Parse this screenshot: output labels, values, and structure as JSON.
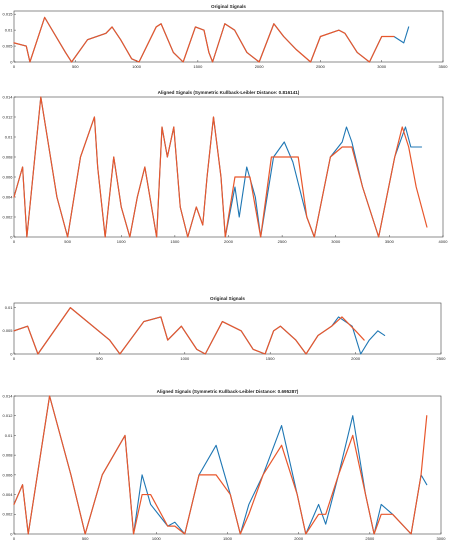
{
  "colors": {
    "blue": "#1f77b4",
    "orange": "#e8572c",
    "axis": "#444444",
    "grid": "#f0f0f0"
  },
  "chart_data": [
    {
      "type": "line",
      "title": "Original Signals",
      "xlim": [
        0,
        3500
      ],
      "ylim": [
        0,
        0.016
      ],
      "xticks": [
        0,
        500,
        1000,
        1500,
        2000,
        2500,
        3000,
        3500
      ],
      "yticks": [
        0,
        0.005,
        0.01,
        0.015
      ],
      "ytick_labels": [
        "0",
        "0.005",
        "0.01",
        "0.015"
      ],
      "series": [
        {
          "color": "blue",
          "x": [
            0,
            100,
            130,
            250,
            420,
            470,
            600,
            750,
            800,
            870,
            960,
            1020,
            1160,
            1200,
            1300,
            1380,
            1480,
            1550,
            1590,
            1620,
            1720,
            1800,
            1900,
            2000,
            2120,
            2200,
            2300,
            2420,
            2500,
            2650,
            2700,
            2800,
            2900,
            3000,
            3100,
            3180,
            3220
          ],
          "y": [
            0.006,
            0.005,
            0,
            0.014,
            0.003,
            0,
            0.007,
            0.009,
            0.011,
            0.007,
            0.001,
            0,
            0.011,
            0.012,
            0.003,
            0,
            0.011,
            0.01,
            0.003,
            0,
            0.012,
            0.01,
            0.003,
            0,
            0.012,
            0.008,
            0.004,
            0,
            0.008,
            0.01,
            0.009,
            0.003,
            0,
            0.008,
            0.008,
            0.006,
            0.011
          ]
        },
        {
          "color": "orange",
          "x": [
            0,
            100,
            130,
            250,
            420,
            470,
            600,
            750,
            800,
            870,
            960,
            1020,
            1160,
            1200,
            1300,
            1380,
            1480,
            1550,
            1590,
            1620,
            1720,
            1800,
            1900,
            2000,
            2120,
            2200,
            2300,
            2420,
            2500,
            2650,
            2700,
            2800,
            2900,
            3000,
            3100
          ],
          "y": [
            0.006,
            0.005,
            0,
            0.014,
            0.003,
            0,
            0.007,
            0.009,
            0.011,
            0.007,
            0.001,
            0,
            0.011,
            0.012,
            0.003,
            0,
            0.011,
            0.01,
            0.003,
            0,
            0.012,
            0.01,
            0.003,
            0,
            0.012,
            0.008,
            0.004,
            0,
            0.008,
            0.01,
            0.009,
            0.003,
            0,
            0.008,
            0.008
          ]
        }
      ]
    },
    {
      "type": "line",
      "title": "Aligned Signals (Symmetric Kullback-Leibler Distance: 0.816141)",
      "xlim": [
        0,
        4000
      ],
      "ylim": [
        0,
        0.014
      ],
      "xticks": [
        0,
        500,
        1000,
        1500,
        2000,
        2500,
        3000,
        3500,
        4000
      ],
      "yticks": [
        0,
        0.002,
        0.004,
        0.006,
        0.008,
        0.01,
        0.012,
        0.014
      ],
      "ytick_labels": [
        "0",
        "0.002",
        "0.004",
        "0.006",
        "0.008",
        "0.01",
        "0.012",
        "0.014"
      ],
      "series": [
        {
          "color": "blue",
          "x": [
            0,
            80,
            120,
            250,
            400,
            500,
            620,
            750,
            780,
            850,
            930,
            1000,
            1080,
            1150,
            1220,
            1330,
            1380,
            1430,
            1490,
            1550,
            1620,
            1700,
            1760,
            1800,
            1860,
            1930,
            1970,
            2060,
            2100,
            2170,
            2250,
            2300,
            2420,
            2520,
            2600,
            2730,
            2800,
            2950,
            3060,
            3100,
            3150,
            3250,
            3400,
            3550,
            3650,
            3700,
            3800
          ],
          "y": [
            0.004,
            0.007,
            0,
            0.014,
            0.004,
            0,
            0.008,
            0.012,
            0.007,
            0,
            0.008,
            0.003,
            0,
            0.004,
            0.007,
            0,
            0.011,
            0.008,
            0.011,
            0.003,
            0,
            0.003,
            0.0012,
            0.006,
            0.012,
            0.006,
            0,
            0.005,
            0.002,
            0.007,
            0.004,
            0,
            0.008,
            0.0095,
            0.0075,
            0.002,
            0,
            0.008,
            0.0095,
            0.011,
            0.0095,
            0.005,
            0,
            0.008,
            0.011,
            0.009,
            0.009
          ]
        },
        {
          "color": "orange",
          "x": [
            0,
            80,
            120,
            250,
            400,
            500,
            620,
            750,
            780,
            850,
            930,
            1000,
            1080,
            1150,
            1220,
            1330,
            1380,
            1430,
            1490,
            1550,
            1620,
            1700,
            1760,
            1800,
            1860,
            1930,
            1970,
            2060,
            2080,
            2200,
            2300,
            2400,
            2520,
            2650,
            2730,
            2800,
            2950,
            3060,
            3150,
            3250,
            3400,
            3550,
            3620,
            3680,
            3750,
            3850
          ],
          "y": [
            0.004,
            0.007,
            0,
            0.014,
            0.004,
            0,
            0.008,
            0.012,
            0.007,
            0,
            0.008,
            0.003,
            0,
            0.004,
            0.007,
            0,
            0.011,
            0.008,
            0.011,
            0.003,
            0,
            0.003,
            0.0012,
            0.006,
            0.012,
            0.006,
            0,
            0.006,
            0.006,
            0.006,
            0,
            0.008,
            0.008,
            0.008,
            0.002,
            0,
            0.008,
            0.009,
            0.009,
            0.005,
            0,
            0.008,
            0.011,
            0.009,
            0.005,
            0.001
          ]
        }
      ]
    },
    {
      "type": "line",
      "title": "Original Signals",
      "xlim": [
        0,
        2500
      ],
      "ylim": [
        0,
        0.011
      ],
      "xticks": [
        0,
        500,
        1000,
        1500,
        2000,
        2500
      ],
      "yticks": [
        0,
        0.005,
        0.01
      ],
      "ytick_labels": [
        "0",
        "0.005",
        "0.01"
      ],
      "series": [
        {
          "color": "blue",
          "x": [
            0,
            80,
            140,
            330,
            560,
            620,
            760,
            860,
            900,
            980,
            1070,
            1120,
            1220,
            1330,
            1400,
            1470,
            1520,
            1560,
            1650,
            1710,
            1780,
            1860,
            1900,
            1980,
            2030,
            2080,
            2130,
            2170
          ],
          "y": [
            0.005,
            0.006,
            0,
            0.01,
            0.003,
            0,
            0.007,
            0.008,
            0.003,
            0.006,
            0.001,
            0,
            0.007,
            0.005,
            0.001,
            0,
            0.005,
            0.006,
            0.003,
            0,
            0.004,
            0.006,
            0.008,
            0.006,
            0,
            0.003,
            0.005,
            0.004
          ]
        },
        {
          "color": "orange",
          "x": [
            0,
            80,
            140,
            330,
            560,
            620,
            760,
            860,
            900,
            980,
            1070,
            1120,
            1220,
            1330,
            1400,
            1470,
            1520,
            1560,
            1650,
            1710,
            1780,
            1860,
            1920,
            2000,
            2050
          ],
          "y": [
            0.005,
            0.006,
            0,
            0.01,
            0.003,
            0,
            0.007,
            0.008,
            0.003,
            0.006,
            0.001,
            0,
            0.007,
            0.005,
            0.001,
            0,
            0.005,
            0.006,
            0.003,
            0,
            0.004,
            0.006,
            0.008,
            0.005,
            0.003
          ]
        }
      ]
    },
    {
      "type": "line",
      "title": "Aligned Signals (Symmetric Kullback-Leibler Distance: 0.695287)",
      "xlim": [
        0,
        3000
      ],
      "ylim": [
        0,
        0.014
      ],
      "xticks": [
        0,
        500,
        1000,
        1500,
        2000,
        2500,
        3000
      ],
      "yticks": [
        0,
        0.002,
        0.004,
        0.006,
        0.008,
        0.01,
        0.012,
        0.014
      ],
      "ytick_labels": [
        "0",
        "0.002",
        "0.004",
        "0.006",
        "0.008",
        "0.01",
        "0.012",
        "0.014"
      ],
      "series": [
        {
          "color": "blue",
          "x": [
            0,
            60,
            100,
            250,
            400,
            500,
            620,
            780,
            840,
            900,
            960,
            1080,
            1130,
            1200,
            1300,
            1420,
            1520,
            1590,
            1650,
            1750,
            1880,
            1990,
            2050,
            2140,
            2190,
            2280,
            2380,
            2470,
            2530,
            2580,
            2660,
            2790,
            2860,
            2900
          ],
          "y": [
            0.003,
            0.005,
            0,
            0.014,
            0.006,
            0,
            0.006,
            0.01,
            0,
            0.006,
            0.003,
            0.0008,
            0.0012,
            0,
            0.006,
            0.009,
            0.004,
            0,
            0.003,
            0.006,
            0.011,
            0.004,
            0,
            0.003,
            0.001,
            0.006,
            0.012,
            0.004,
            0,
            0.003,
            0.002,
            0,
            0.006,
            0.005
          ]
        },
        {
          "color": "orange",
          "x": [
            0,
            60,
            100,
            250,
            400,
            500,
            620,
            780,
            840,
            900,
            960,
            1080,
            1130,
            1200,
            1300,
            1420,
            1520,
            1590,
            1650,
            1750,
            1880,
            1990,
            2050,
            2140,
            2190,
            2280,
            2380,
            2470,
            2530,
            2580,
            2660,
            2790,
            2860,
            2900
          ],
          "y": [
            0.003,
            0.005,
            0,
            0.014,
            0.006,
            0,
            0.006,
            0.01,
            0,
            0.004,
            0.004,
            0.0008,
            0.0008,
            0,
            0.006,
            0.006,
            0.004,
            0,
            0.002,
            0.006,
            0.009,
            0.004,
            0,
            0.002,
            0.002,
            0.006,
            0.01,
            0.004,
            0,
            0.002,
            0.002,
            0,
            0.006,
            0.012
          ]
        }
      ]
    }
  ]
}
